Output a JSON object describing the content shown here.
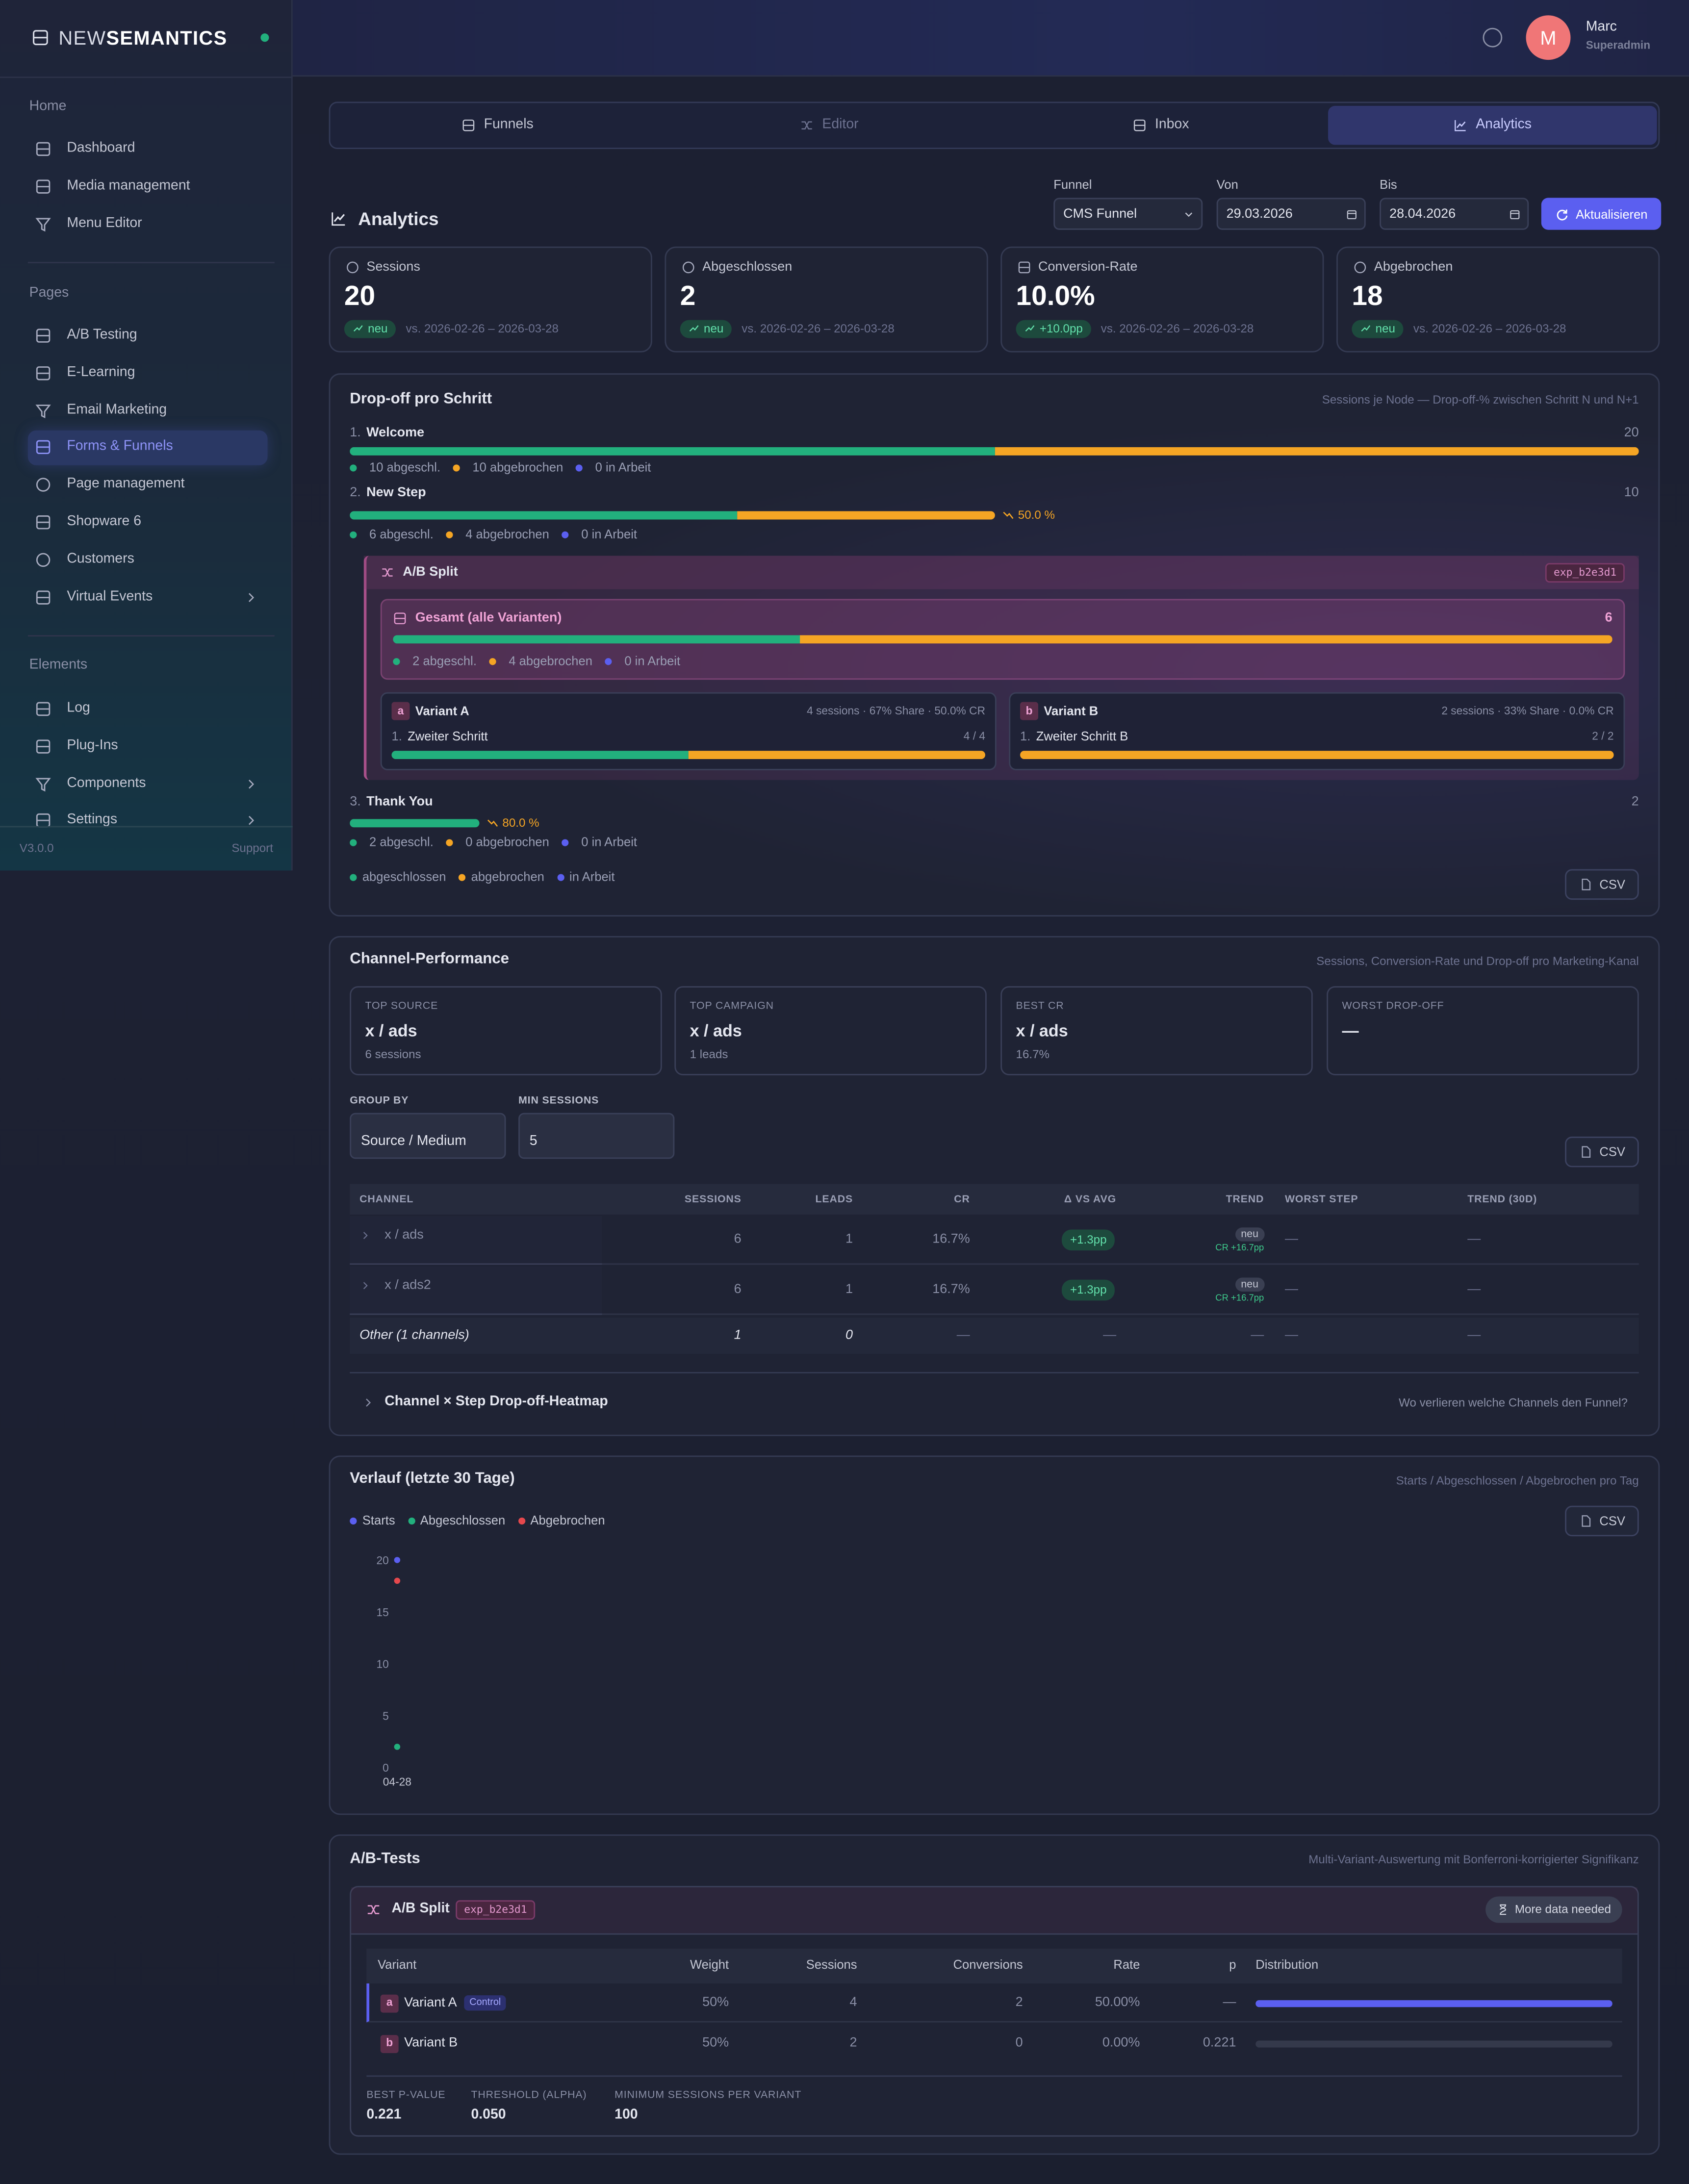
{
  "sidebar": {
    "brand_light": "NEW",
    "brand_bold": "SEMANTICS",
    "sections": [
      {
        "title": "Home",
        "items": [
          "Dashboard",
          "Media management",
          "Menu Editor"
        ]
      },
      {
        "title": "Pages",
        "items": [
          "A/B Testing",
          "E-Learning",
          "Email Marketing",
          "Forms & Funnels",
          "Page management",
          "Shopware 6",
          "Customers",
          "Virtual Events"
        ]
      },
      {
        "title": "Elements",
        "items": [
          "Log",
          "Plug-Ins",
          "Components",
          "Settings"
        ]
      }
    ],
    "version": "V3.0.0",
    "support": "Support"
  },
  "header": {
    "avatar": "M",
    "name": "Marc",
    "role": "Superadmin"
  },
  "tabs": [
    "Funnels",
    "Editor",
    "Inbox",
    "Analytics"
  ],
  "toolbar": {
    "title": "Analytics",
    "funnel_label": "Funnel",
    "funnel_value": "CMS Funnel",
    "from_label": "Von",
    "from_value": "29.03.2026",
    "to_label": "Bis",
    "to_value": "28.04.2026",
    "refresh": "Aktualisieren"
  },
  "kpis": [
    {
      "label": "Sessions",
      "value": "20",
      "badge": "neu",
      "compare": "vs. 2026-02-26 – 2026-03-28"
    },
    {
      "label": "Abgeschlossen",
      "value": "2",
      "badge": "neu",
      "compare": "vs. 2026-02-26 – 2026-03-28"
    },
    {
      "label": "Conversion-Rate",
      "value": "10.0%",
      "badge": "+10.0pp",
      "compare": "vs. 2026-02-26 – 2026-03-28"
    },
    {
      "label": "Abgebrochen",
      "value": "18",
      "badge": "neu",
      "compare": "vs. 2026-02-26 – 2026-03-28"
    }
  ],
  "dropoff": {
    "title": "Drop-off pro Schritt",
    "subtitle": "Sessions je Node — Drop-off-% zwischen Schritt N und N+1",
    "steps": [
      {
        "index": "1.",
        "name": "Welcome",
        "sessions": 20,
        "completed": 10,
        "aborted": 10,
        "completed_label": "10 abgeschl.",
        "aborted_label": "10 abgebrochen",
        "active_label": "0 in Arbeit"
      },
      {
        "index": "2.",
        "name": "New Step",
        "sessions": 10,
        "completed": 6,
        "aborted": 4,
        "drop": "50.0 %",
        "completed_label": "6 abgeschl.",
        "aborted_label": "4 abgebrochen",
        "active_label": "0 in Arbeit"
      },
      {
        "index": "3.",
        "name": "Thank You",
        "sessions": 2,
        "completed": 2,
        "aborted": 0,
        "drop": "80.0 %",
        "completed_label": "2 abgeschl.",
        "aborted_label": "0 abgebrochen",
        "active_label": "0 in Arbeit"
      }
    ],
    "split": {
      "title": "A/B Split",
      "id": "exp_b2e3d1",
      "total": {
        "title": "Gesamt (alle Varianten)",
        "sessions": 6,
        "completed": 2,
        "aborted": 4,
        "completed_label": "2 abgeschl.",
        "aborted_label": "4 abgebrochen",
        "active_label": "0 in Arbeit"
      },
      "variants": [
        {
          "key": "a",
          "name": "Variant A",
          "stats": "4 sessions · 67% Share · 50.0% CR",
          "step_index": "1.",
          "step": "Zweiter Schritt",
          "count": "4 / 4",
          "sessions": 4,
          "completed": 2,
          "aborted": 2
        },
        {
          "key": "b",
          "name": "Variant B",
          "stats": "2 sessions · 33% Share · 0.0% CR",
          "step_index": "1.",
          "step": "Zweiter Schritt B",
          "count": "2 / 2",
          "sessions": 2,
          "completed": 0,
          "aborted": 2
        }
      ]
    },
    "legend": [
      "abgeschlossen",
      "abgebrochen",
      "in Arbeit"
    ],
    "csv": "CSV"
  },
  "channels": {
    "title": "Channel-Performance",
    "subtitle": "Sessions, Conversion-Rate und Drop-off pro Marketing-Kanal",
    "summary": [
      {
        "label": "TOP SOURCE",
        "value": "x / ads",
        "note": "6 sessions"
      },
      {
        "label": "TOP CAMPAIGN",
        "value": "x / ads",
        "note": "1 leads"
      },
      {
        "label": "BEST CR",
        "value": "x / ads",
        "note": "16.7%"
      },
      {
        "label": "WORST DROP-OFF",
        "value": "—"
      }
    ],
    "group_label": "GROUP BY",
    "group_value": "Source / Medium",
    "min_label": "MIN SESSIONS",
    "min_value": "5",
    "csv": "CSV",
    "columns": [
      "CHANNEL",
      "SESSIONS",
      "LEADS",
      "CR",
      "Δ VS AVG",
      "TREND",
      "WORST STEP",
      "TREND (30D)"
    ],
    "rows": [
      {
        "channel": "x / ads",
        "sessions": "6",
        "leads": "1",
        "cr": "16.7%",
        "delta": "+1.3pp",
        "trend": "neu",
        "trend_note": "CR +16.7pp",
        "worst_step": "—",
        "trend_30d": "—"
      },
      {
        "channel": "x / ads2",
        "sessions": "6",
        "leads": "1",
        "cr": "16.7%",
        "delta": "+1.3pp",
        "trend": "neu",
        "trend_note": "CR +16.7pp",
        "worst_step": "—",
        "trend_30d": "—"
      }
    ],
    "other": {
      "channel": "Other (1 channels)",
      "sessions": "1",
      "leads": "0",
      "cr": "—",
      "delta": "—",
      "trend": "—",
      "worst_step": "—",
      "trend_30d": "—"
    },
    "heatmap": {
      "title": "Channel × Step Drop-off-Heatmap",
      "hint": "Wo verlieren welche Channels den Funnel?"
    }
  },
  "chart_data": {
    "type": "line",
    "title": "Verlauf (letzte 30 Tage)",
    "subtitle": "Starts / Abgeschlossen / Abgebrochen pro Tag",
    "x": [
      "04-28"
    ],
    "series": [
      {
        "name": "Starts",
        "color": "#5b5ff0",
        "values": [
          20
        ]
      },
      {
        "name": "Abgeschlossen",
        "color": "#22b07d",
        "values": [
          2
        ]
      },
      {
        "name": "Abgebrochen",
        "color": "#e5484d",
        "values": [
          18
        ]
      }
    ],
    "ylim": [
      0,
      20
    ],
    "yticks": [
      0,
      5,
      10,
      15,
      20
    ]
  },
  "trend_csv": "CSV",
  "ab_tests": {
    "title": "A/B-Tests",
    "subtitle": "Multi-Variant-Auswertung mit Bonferroni-korrigierter Signifikanz",
    "split": "A/B Split",
    "id": "exp_b2e3d1",
    "status": "More data needed",
    "columns": [
      "Variant",
      "Weight",
      "Sessions",
      "Conversions",
      "Rate",
      "p",
      "Distribution"
    ],
    "rows": [
      {
        "key": "a",
        "name": "Variant A",
        "tag": "Control",
        "weight": "50%",
        "sessions": "4",
        "conversions": "2",
        "rate": 50,
        "rate_label": "50.00%",
        "p": "—"
      },
      {
        "key": "b",
        "name": "Variant B",
        "weight": "50%",
        "sessions": "2",
        "conversions": "0",
        "rate": 0,
        "rate_label": "0.00%",
        "p": "0.221"
      }
    ],
    "footer": [
      {
        "label": "BEST P-VALUE",
        "value": "0.221"
      },
      {
        "label": "THRESHOLD (ALPHA)",
        "value": "0.050"
      },
      {
        "label": "MINIMUM SESSIONS PER VARIANT",
        "value": "100"
      }
    ]
  }
}
